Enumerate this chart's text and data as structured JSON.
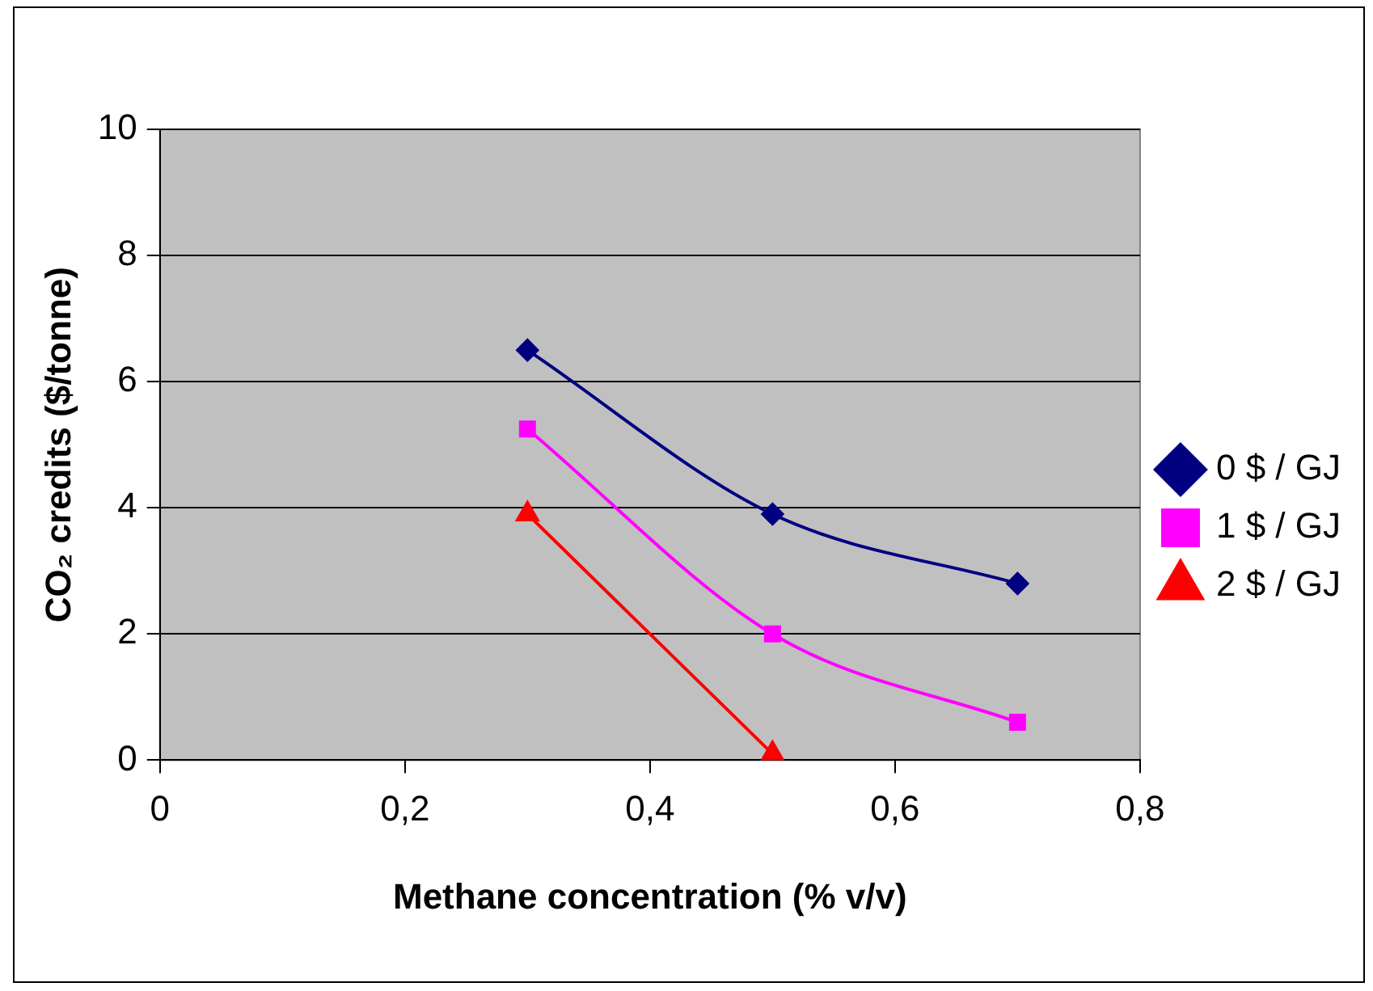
{
  "chart_data": {
    "type": "line",
    "xlabel": "Methane concentration (% v/v)",
    "ylabel": "CO₂ credits ($/tonne)",
    "xlim": [
      0,
      0.8
    ],
    "xticks": [
      0,
      {
        "value": 0.2,
        "label": "0,2"
      },
      {
        "value": 0.4,
        "label": "0,4"
      },
      {
        "value": 0.6,
        "label": "0,6"
      },
      {
        "value": 0.8,
        "label": "0,8"
      }
    ],
    "ylim": [
      0,
      10
    ],
    "yticks": [
      0,
      2,
      4,
      6,
      8,
      10
    ],
    "grid": "y",
    "legend": "right",
    "series": [
      {
        "name": "0 $ / GJ",
        "color": "#000080",
        "marker": "diamond",
        "x": [
          0.3,
          0.5,
          0.7
        ],
        "values": [
          6.5,
          3.9,
          2.8
        ]
      },
      {
        "name": "1 $ / GJ",
        "color": "#ff00ff",
        "marker": "square",
        "x": [
          0.3,
          0.5,
          0.7
        ],
        "values": [
          5.25,
          2.0,
          0.6
        ]
      },
      {
        "name": "2 $ / GJ",
        "color": "#ff0000",
        "marker": "triangle",
        "x": [
          0.3,
          0.5
        ],
        "values": [
          3.9,
          0.1
        ]
      }
    ]
  }
}
